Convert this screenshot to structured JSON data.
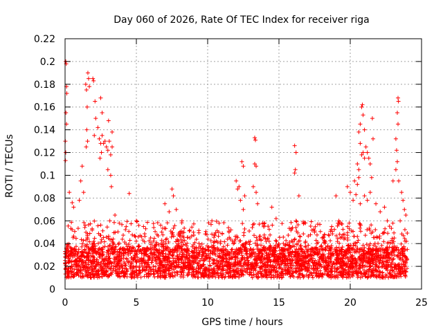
{
  "chart_data": {
    "type": "scatter",
    "title": "Day 060 of 2026, Rate Of TEC Index for receiver riga",
    "xlabel": "GPS time / hours",
    "ylabel": "ROTI / TECUs",
    "xlim": [
      0,
      25
    ],
    "ylim": [
      0,
      0.22
    ],
    "xticks": [
      "0",
      "5",
      "10",
      "15",
      "20",
      "25"
    ],
    "yticks": [
      "0",
      "0.02",
      "0.04",
      "0.06",
      "0.08",
      "0.1",
      "0.12",
      "0.14",
      "0.16",
      "0.18",
      "0.2",
      "0.22"
    ],
    "grid": true,
    "marker": "+",
    "series_color": "#ff0000",
    "x_range_of_data": [
      0,
      24
    ],
    "baseline_band": [
      0.01,
      0.035
    ],
    "series": [
      {
        "points": [
          [
            0.05,
            0.2
          ],
          [
            0.08,
            0.198
          ],
          [
            0.1,
            0.178
          ],
          [
            0.12,
            0.172
          ],
          [
            0.06,
            0.155
          ],
          [
            0.1,
            0.145
          ],
          [
            0.02,
            0.13
          ],
          [
            0.05,
            0.12
          ],
          [
            0.03,
            0.113
          ],
          [
            0.3,
            0.085
          ],
          [
            0.5,
            0.076
          ],
          [
            0.6,
            0.072
          ],
          [
            1.2,
            0.108
          ],
          [
            1.1,
            0.095
          ],
          [
            1.3,
            0.085
          ],
          [
            1.0,
            0.078
          ],
          [
            1.45,
            0.18
          ],
          [
            1.5,
            0.175
          ],
          [
            1.55,
            0.16
          ],
          [
            1.6,
            0.19
          ],
          [
            1.65,
            0.185
          ],
          [
            1.7,
            0.178
          ],
          [
            1.52,
            0.14
          ],
          [
            1.48,
            0.125
          ],
          [
            1.58,
            0.13
          ],
          [
            2.1,
            0.165
          ],
          [
            2.15,
            0.15
          ],
          [
            2.05,
            0.135
          ],
          [
            1.95,
            0.185
          ],
          [
            2.0,
            0.183
          ],
          [
            2.3,
            0.142
          ],
          [
            2.4,
            0.132
          ],
          [
            2.5,
            0.128
          ],
          [
            2.6,
            0.135
          ],
          [
            2.7,
            0.128
          ],
          [
            2.5,
            0.168
          ],
          [
            2.6,
            0.155
          ],
          [
            2.45,
            0.115
          ],
          [
            2.55,
            0.12
          ],
          [
            2.8,
            0.13
          ],
          [
            2.9,
            0.125
          ],
          [
            3.0,
            0.122
          ],
          [
            3.1,
            0.13
          ],
          [
            3.2,
            0.118
          ],
          [
            3.3,
            0.125
          ],
          [
            3.0,
            0.105
          ],
          [
            3.2,
            0.1
          ],
          [
            3.3,
            0.138
          ],
          [
            3.05,
            0.148
          ],
          [
            3.25,
            0.09
          ],
          [
            3.5,
            0.065
          ],
          [
            3.8,
            0.058
          ],
          [
            4.5,
            0.084
          ],
          [
            5.0,
            0.06
          ],
          [
            5.5,
            0.055
          ],
          [
            6.0,
            0.045
          ],
          [
            7.0,
            0.075
          ],
          [
            7.3,
            0.068
          ],
          [
            7.5,
            0.088
          ],
          [
            7.6,
            0.082
          ],
          [
            7.8,
            0.07
          ],
          [
            8.2,
            0.06
          ],
          [
            9.0,
            0.05
          ],
          [
            10.3,
            0.06
          ],
          [
            10.8,
            0.058
          ],
          [
            11.5,
            0.05
          ],
          [
            12.0,
            0.095
          ],
          [
            12.1,
            0.088
          ],
          [
            12.2,
            0.09
          ],
          [
            12.4,
            0.112
          ],
          [
            12.5,
            0.108
          ],
          [
            12.6,
            0.082
          ],
          [
            12.3,
            0.078
          ],
          [
            12.5,
            0.07
          ],
          [
            13.3,
            0.133
          ],
          [
            13.35,
            0.131
          ],
          [
            13.3,
            0.11
          ],
          [
            13.4,
            0.108
          ],
          [
            13.2,
            0.09
          ],
          [
            13.4,
            0.085
          ],
          [
            13.5,
            0.075
          ],
          [
            14.0,
            0.058
          ],
          [
            14.5,
            0.072
          ],
          [
            14.8,
            0.062
          ],
          [
            16.1,
            0.126
          ],
          [
            16.2,
            0.12
          ],
          [
            16.15,
            0.105
          ],
          [
            16.1,
            0.102
          ],
          [
            16.4,
            0.082
          ],
          [
            16.2,
            0.06
          ],
          [
            17.5,
            0.05
          ],
          [
            18.2,
            0.048
          ],
          [
            18.7,
            0.055
          ],
          [
            19.0,
            0.082
          ],
          [
            19.2,
            0.06
          ],
          [
            19.8,
            0.09
          ],
          [
            20.0,
            0.085
          ],
          [
            20.2,
            0.078
          ],
          [
            20.3,
            0.095
          ],
          [
            20.4,
            0.083
          ],
          [
            20.5,
            0.11
          ],
          [
            20.6,
            0.105
          ],
          [
            20.7,
            0.128
          ],
          [
            20.8,
            0.118
          ],
          [
            20.9,
            0.12
          ],
          [
            21.0,
            0.115
          ],
          [
            20.6,
            0.138
          ],
          [
            20.7,
            0.145
          ],
          [
            20.8,
            0.16
          ],
          [
            20.85,
            0.162
          ],
          [
            20.9,
            0.153
          ],
          [
            21.0,
            0.14
          ],
          [
            21.1,
            0.125
          ],
          [
            21.2,
            0.12
          ],
          [
            21.3,
            0.115
          ],
          [
            21.4,
            0.11
          ],
          [
            21.5,
            0.098
          ],
          [
            21.6,
            0.132
          ],
          [
            21.55,
            0.15
          ],
          [
            20.6,
            0.098
          ],
          [
            20.5,
            0.092
          ],
          [
            20.7,
            0.075
          ],
          [
            21.0,
            0.082
          ],
          [
            21.2,
            0.078
          ],
          [
            21.4,
            0.085
          ],
          [
            21.8,
            0.075
          ],
          [
            22.1,
            0.068
          ],
          [
            22.4,
            0.072
          ],
          [
            22.6,
            0.06
          ],
          [
            23.0,
            0.095
          ],
          [
            23.2,
            0.132
          ],
          [
            23.25,
            0.122
          ],
          [
            23.3,
            0.112
          ],
          [
            23.35,
            0.168
          ],
          [
            23.38,
            0.165
          ],
          [
            23.3,
            0.155
          ],
          [
            23.35,
            0.145
          ],
          [
            23.2,
            0.105
          ],
          [
            23.4,
            0.095
          ],
          [
            23.6,
            0.085
          ],
          [
            23.7,
            0.078
          ],
          [
            23.8,
            0.07
          ],
          [
            23.9,
            0.065
          ],
          [
            23.5,
            0.06
          ]
        ]
      }
    ]
  }
}
